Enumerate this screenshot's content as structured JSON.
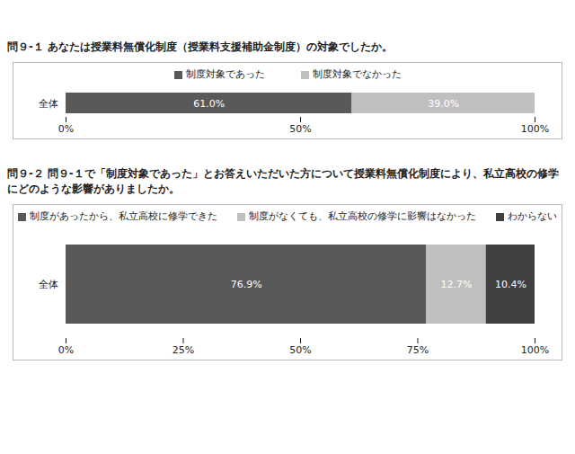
{
  "chart_data": [
    {
      "type": "bar",
      "title": "問９-１ あなたは授業料無償化制度（授業料支援補助金制度）の対象でしたか。",
      "orientation": "horizontal",
      "stacked": true,
      "data_labels": true,
      "legend": "top",
      "categories": [
        "全体"
      ],
      "series": [
        {
          "name": "制度対象であった",
          "color": "#595959",
          "values": [
            61.0
          ],
          "value_labels": [
            "61.0%"
          ]
        },
        {
          "name": "制度対象でなかった",
          "color": "#bfbfbf",
          "values": [
            39.0
          ],
          "value_labels": [
            "39.0%"
          ]
        }
      ],
      "xlim": [
        0,
        100
      ],
      "xticks": [
        {
          "value": 0,
          "label": "0%"
        },
        {
          "value": 50,
          "label": "50%"
        },
        {
          "value": 100,
          "label": "100%"
        }
      ]
    },
    {
      "type": "bar",
      "title": "問９-２ 問９-１で「制度対象であった」とお答えいただいた方について授業料無償化制度により、私立高校の修学にどのような影響がありましたか。",
      "orientation": "horizontal",
      "stacked": true,
      "data_labels": true,
      "legend": "top",
      "categories": [
        "全体"
      ],
      "series": [
        {
          "name": "制度があったから、私立高校に修学できた",
          "color": "#595959",
          "values": [
            76.9
          ],
          "value_labels": [
            "76.9%"
          ]
        },
        {
          "name": "制度がなくても、私立高校の修学に影響はなかった",
          "color": "#bfbfbf",
          "values": [
            12.7
          ],
          "value_labels": [
            "12.7%"
          ]
        },
        {
          "name": "わからない",
          "color": "#404040",
          "values": [
            10.4
          ],
          "value_labels": [
            "10.4%"
          ]
        }
      ],
      "xlim": [
        0,
        100
      ],
      "xticks": [
        {
          "value": 0,
          "label": "0%"
        },
        {
          "value": 25,
          "label": "25%"
        },
        {
          "value": 50,
          "label": "50%"
        },
        {
          "value": 75,
          "label": "75%"
        },
        {
          "value": 100,
          "label": "100%"
        }
      ]
    }
  ]
}
